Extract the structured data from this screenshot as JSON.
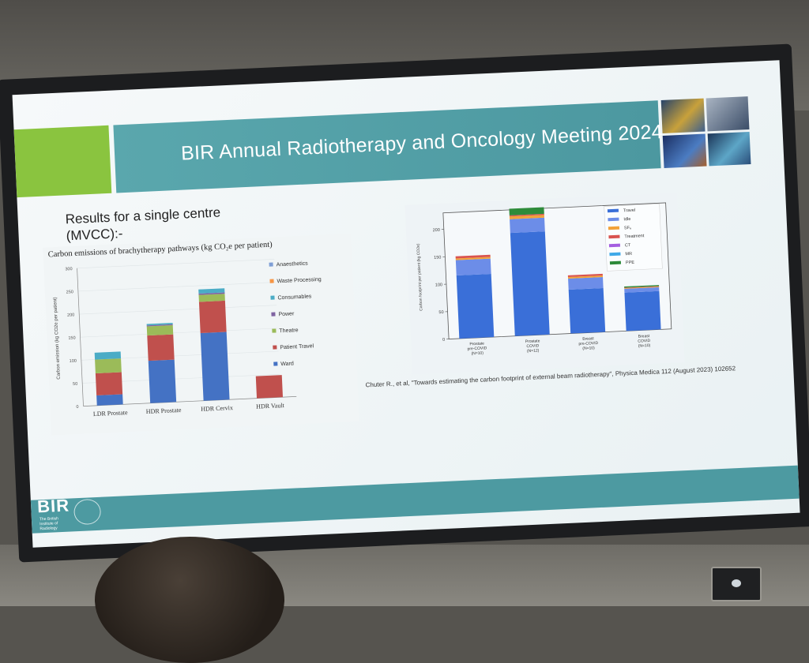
{
  "slide": {
    "title": "BIR Annual Radiotherapy and Oncology Meeting 2024",
    "subtitle_line1": "Results for a single centre",
    "subtitle_line2": "(MVCC):-",
    "citation": "Chuter R., et al, \"Towards estimating the carbon footprint of external beam radiotherapy\", Physica Medica 112 (August 2023) 102652",
    "logo_text": "BIR",
    "logo_subtext_1": "The British",
    "logo_subtext_2": "Institute of",
    "logo_subtext_3": "Radiology"
  },
  "chart_data": [
    {
      "type": "bar",
      "stacked": true,
      "title": "Carbon emissions of brachytherapy pathways (kg CO₂e per patient)",
      "xlabel": "",
      "ylabel": "Carbon emission (kg CO2e per patient)",
      "ylim": [
        0,
        300
      ],
      "yticks": [
        0,
        50,
        100,
        150,
        200,
        250,
        300
      ],
      "categories": [
        "LDR Prostate",
        "HDR Prostate",
        "HDR Cervix",
        "HDR Vault"
      ],
      "legend_position": "right",
      "series": [
        {
          "name": "Ward",
          "color": "#4472c4",
          "values": [
            22,
            92,
            147,
            0
          ]
        },
        {
          "name": "Patient Travel",
          "color": "#c0504d",
          "values": [
            48,
            55,
            68,
            48
          ]
        },
        {
          "name": "Theatre",
          "color": "#9bbb59",
          "values": [
            30,
            20,
            15,
            0
          ]
        },
        {
          "name": "Power",
          "color": "#8064a2",
          "values": [
            0,
            2,
            3,
            0
          ]
        },
        {
          "name": "Consumables",
          "color": "#4bacc6",
          "values": [
            15,
            3,
            9,
            0
          ]
        },
        {
          "name": "Waste Processing",
          "color": "#f79646",
          "values": [
            0,
            0,
            0,
            0
          ]
        },
        {
          "name": "Anaesthetics",
          "color": "#7f9fd6",
          "values": [
            0,
            0,
            0,
            0
          ]
        }
      ]
    },
    {
      "type": "bar",
      "stacked": true,
      "title": "",
      "xlabel": "",
      "ylabel": "Carbon footprint per patient (kg CO2e)",
      "ylim": [
        0,
        230
      ],
      "yticks": [
        0,
        50,
        100,
        150,
        200
      ],
      "categories": [
        {
          "line1": "Prostate",
          "line2": "pre-COVID",
          "line3": "(N=10)"
        },
        {
          "line1": "Prostate",
          "line2": "COVID",
          "line3": "(N=12)"
        },
        {
          "line1": "Breast",
          "line2": "pre-COVID",
          "line3": "(N=10)"
        },
        {
          "line1": "Breast",
          "line2": "COVID",
          "line3": "(N=10)"
        }
      ],
      "legend_position": "top-right",
      "series": [
        {
          "name": "Travel",
          "color": "#3a6fd8",
          "values": [
            115,
            188,
            80,
            70
          ]
        },
        {
          "name": "Idle",
          "color": "#6c8de8",
          "values": [
            28,
            25,
            20,
            7
          ]
        },
        {
          "name": "SF₆",
          "color": "#f2a23a",
          "values": [
            3,
            5,
            3,
            1
          ]
        },
        {
          "name": "Treatment",
          "color": "#d9534f",
          "values": [
            4,
            2,
            3,
            1
          ]
        },
        {
          "name": "CT",
          "color": "#a45ee0",
          "values": [
            0,
            0,
            0,
            0
          ]
        },
        {
          "name": "MR",
          "color": "#3fa9e8",
          "values": [
            0,
            0,
            0,
            0
          ]
        },
        {
          "name": "PPE",
          "color": "#2e8b3a",
          "values": [
            0,
            12,
            0,
            2
          ]
        }
      ]
    }
  ]
}
